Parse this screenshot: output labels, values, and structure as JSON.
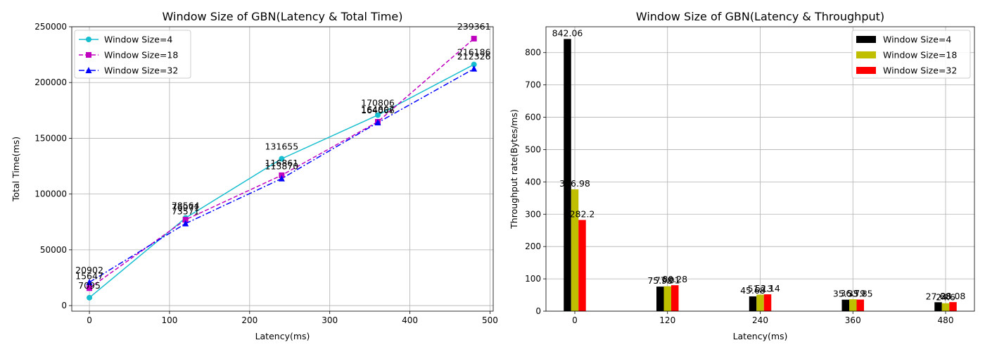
{
  "chart_data": [
    {
      "type": "line",
      "title": "Window Size of GBN(Latency & Total Time)",
      "xlabel": "Latency(ms)",
      "ylabel": "Total Time(ms)",
      "xlim": [
        -22,
        504
      ],
      "ylim": [
        -5000,
        250000
      ],
      "xticks": [
        0,
        100,
        200,
        300,
        400,
        500
      ],
      "yticks": [
        0,
        50000,
        100000,
        150000,
        200000,
        250000
      ],
      "grid": true,
      "legend": "top-left",
      "x": [
        0,
        120,
        240,
        360,
        480
      ],
      "series": [
        {
          "name": "Window Size=4",
          "color": "#17becf",
          "style": "solid",
          "marker": "circle",
          "values": [
            7095,
            78564,
            131655,
            170806,
            216186
          ]
        },
        {
          "name": "Window Size=18",
          "color": "#bf00bf",
          "style": "dashed",
          "marker": "square",
          "values": [
            15647,
            76971,
            116861,
            164807,
            239361
          ]
        },
        {
          "name": "Window Size=32",
          "color": "#0000ff",
          "style": "dashdot",
          "marker": "triangle",
          "values": [
            20902,
            73571,
            113870,
            164066,
            212326
          ]
        }
      ]
    },
    {
      "type": "bar",
      "title": "Window Size of GBN(Latency & Throughput)",
      "xlabel": "Latency(ms)",
      "ylabel": "Throughput rate(Bytes/ms)",
      "categories": [
        "0",
        "120",
        "240",
        "360",
        "480"
      ],
      "ylim": [
        0,
        880
      ],
      "yticks": [
        0,
        100,
        200,
        300,
        400,
        500,
        600,
        700,
        800
      ],
      "grid": true,
      "legend": "top-right",
      "series": [
        {
          "name": "Window Size=4",
          "color": "#000000",
          "values": [
            842.06,
            75.98,
            45.68,
            35.53,
            27.68
          ],
          "labels": [
            "842.06",
            "75.98",
            "45.68",
            "35.53",
            "27.68"
          ]
        },
        {
          "name": "Window Size=18",
          "color": "#bfbf00",
          "values": [
            376.98,
            77.01,
            51.13,
            36.79,
            24.6
          ],
          "labels": [
            "376.98",
            "77.01",
            "51.13",
            "36.79",
            "24.6"
          ]
        },
        {
          "name": "Window Size=32",
          "color": "#ff0000",
          "values": [
            282.2,
            80.28,
            52.14,
            35.85,
            28.08
          ],
          "labels": [
            "282.2",
            "80.28",
            "52.14",
            "35.85",
            "28.08"
          ]
        }
      ]
    }
  ]
}
